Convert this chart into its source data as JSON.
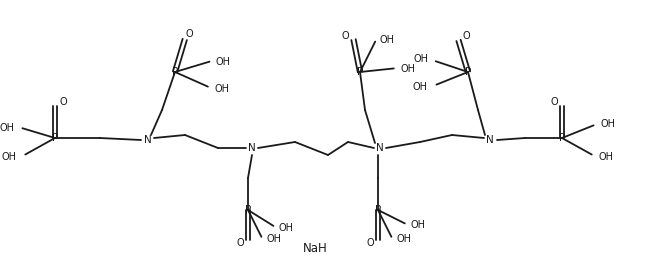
{
  "bg_color": "#ffffff",
  "line_color": "#1a1a1a",
  "text_color": "#1a1a1a",
  "linewidth": 1.3,
  "fontsize": 7.0,
  "NaH_text": "NaH",
  "figsize": [
    6.6,
    2.71
  ],
  "dpi": 100,
  "xlim": [
    0,
    660
  ],
  "ylim": [
    0,
    271
  ]
}
